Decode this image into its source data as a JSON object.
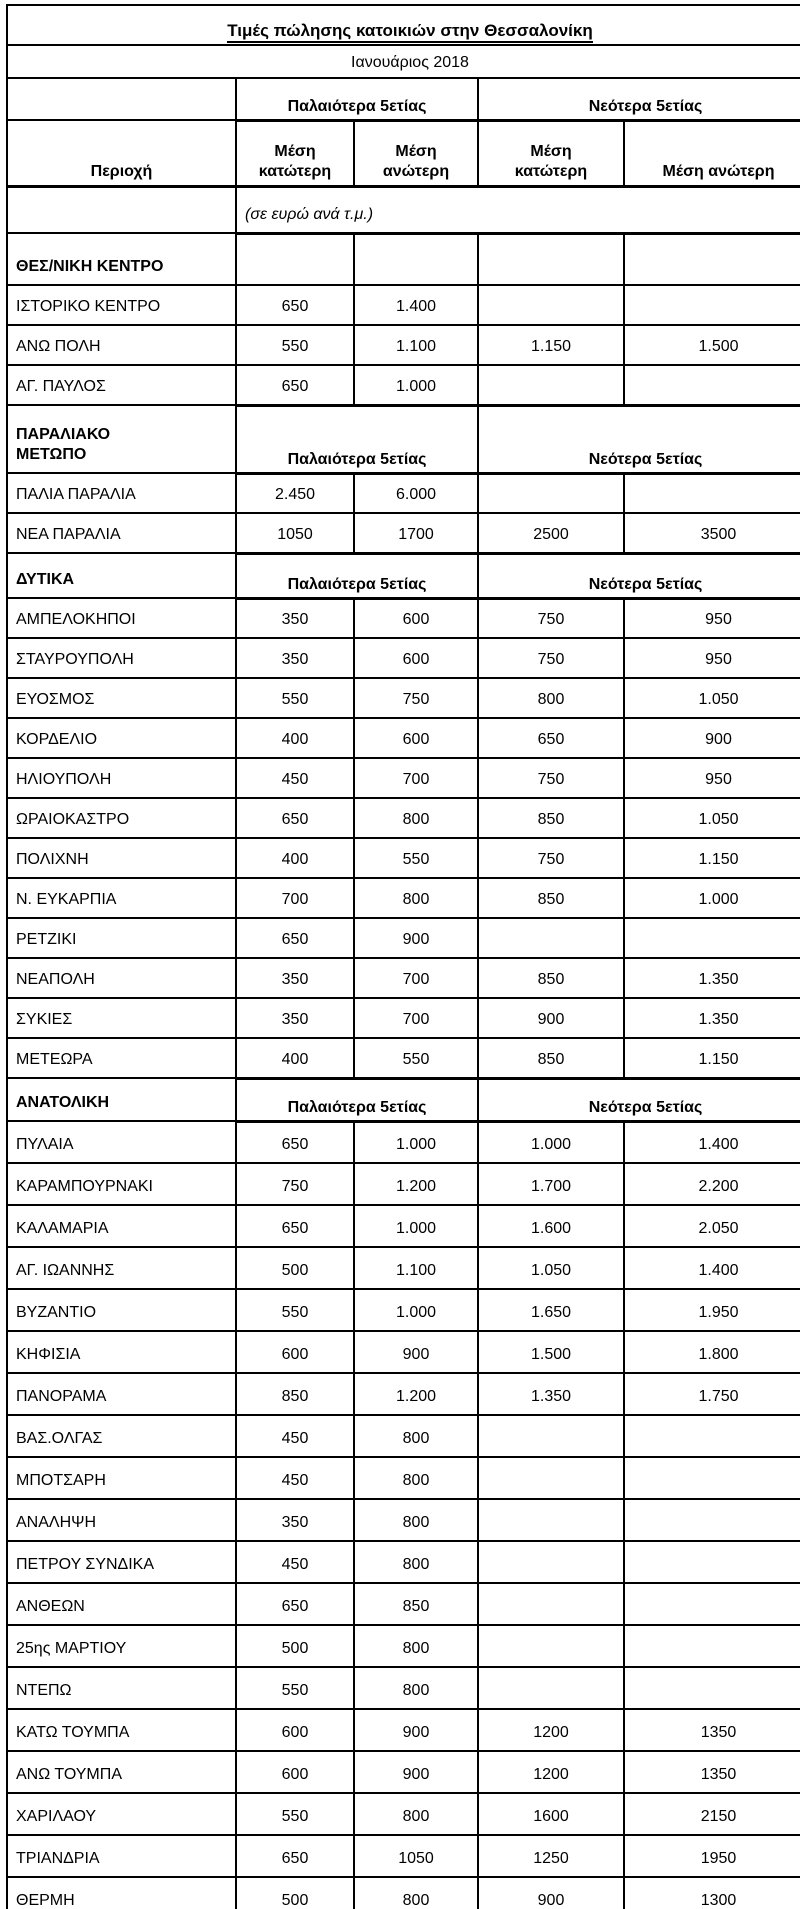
{
  "title": "Τιμές πώλησης κατοικιών στην Θεσσαλονίκη",
  "period": "Ιανουάριος 2018",
  "units_note": "(σε ευρώ ανά τ.μ.)",
  "column_groups": {
    "old": "Παλαιότερα 5ετίας",
    "new": "Νεότερα 5ετίας"
  },
  "columns": {
    "area": "Περιοχή",
    "old_min": "Μέση κατώτερη",
    "old_max": "Μέση ανώτερη",
    "new_min": "Μέση κατώτερη",
    "new_max": "Μέση ανώτερη"
  },
  "colors": {
    "text": "#000000",
    "border": "#000000",
    "background": "#ffffff"
  },
  "sections": [
    {
      "name": "ΘΕΣ/ΝΙΚΗ ΚΕΝΤΡΟ",
      "show_group_labels": false,
      "rows": [
        {
          "area": "ΙΣΤΟΡΙΚΟ ΚΕΝΤΡΟ",
          "old_min": "650",
          "old_max": "1.400",
          "new_min": "",
          "new_max": ""
        },
        {
          "area": "ΑΝΩ ΠΟΛΗ",
          "old_min": "550",
          "old_max": "1.100",
          "new_min": "1.150",
          "new_max": "1.500"
        },
        {
          "area": "ΑΓ. ΠΑΥΛΟΣ",
          "old_min": "650",
          "old_max": "1.000",
          "new_min": "",
          "new_max": ""
        }
      ]
    },
    {
      "name": "ΠΑΡΑΛΙΑΚΟ\nΜΕΤΩΠΟ",
      "show_group_labels": true,
      "rows": [
        {
          "area": "ΠΑΛΙΑ ΠΑΡΑΛΙΑ",
          "old_min": "2.450",
          "old_max": "6.000",
          "new_min": "",
          "new_max": ""
        },
        {
          "area": "ΝΕΑ ΠΑΡΑΛΙΑ",
          "old_min": "1050",
          "old_max": "1700",
          "new_min": "2500",
          "new_max": "3500"
        }
      ]
    },
    {
      "name": "ΔΥΤΙΚΑ",
      "show_group_labels": true,
      "rows": [
        {
          "area": "ΑΜΠΕΛΟΚΗΠΟΙ",
          "old_min": "350",
          "old_max": "600",
          "new_min": "750",
          "new_max": "950"
        },
        {
          "area": "ΣΤΑΥΡΟΥΠΟΛΗ",
          "old_min": "350",
          "old_max": "600",
          "new_min": "750",
          "new_max": "950"
        },
        {
          "area": "ΕΥΟΣΜΟΣ",
          "old_min": "550",
          "old_max": "750",
          "new_min": "800",
          "new_max": "1.050"
        },
        {
          "area": "ΚΟΡΔΕΛΙΟ",
          "old_min": "400",
          "old_max": "600",
          "new_min": "650",
          "new_max": "900"
        },
        {
          "area": "ΗΛΙΟΥΠΟΛΗ",
          "old_min": "450",
          "old_max": "700",
          "new_min": "750",
          "new_max": "950"
        },
        {
          "area": "ΩΡΑΙΟΚΑΣΤΡΟ",
          "old_min": "650",
          "old_max": "800",
          "new_min": "850",
          "new_max": "1.050"
        },
        {
          "area": "ΠΟΛΙΧΝΗ",
          "old_min": "400",
          "old_max": "550",
          "new_min": "750",
          "new_max": "1.150"
        },
        {
          "area": "Ν. ΕΥΚΑΡΠΙΑ",
          "old_min": "700",
          "old_max": "800",
          "new_min": "850",
          "new_max": "1.000"
        },
        {
          "area": "ΡΕΤΖΙΚΙ",
          "old_min": "650",
          "old_max": "900",
          "new_min": "",
          "new_max": ""
        },
        {
          "area": "ΝΕΑΠΟΛΗ",
          "old_min": "350",
          "old_max": "700",
          "new_min": "850",
          "new_max": "1.350"
        },
        {
          "area": "ΣΥΚΙΕΣ",
          "old_min": "350",
          "old_max": "700",
          "new_min": "900",
          "new_max": "1.350"
        },
        {
          "area": "ΜΕΤΕΩΡΑ",
          "old_min": "400",
          "old_max": "550",
          "new_min": "850",
          "new_max": "1.150"
        }
      ]
    },
    {
      "name": "ΑΝΑΤΟΛΙΚΗ",
      "show_group_labels": true,
      "rows": [
        {
          "area": "ΠΥΛΑΙΑ",
          "old_min": "650",
          "old_max": "1.000",
          "new_min": "1.000",
          "new_max": "1.400"
        },
        {
          "area": "ΚΑΡΑΜΠΟΥΡΝΑΚΙ",
          "old_min": "750",
          "old_max": "1.200",
          "new_min": "1.700",
          "new_max": "2.200"
        },
        {
          "area": "ΚΑΛΑΜΑΡΙΑ",
          "old_min": "650",
          "old_max": "1.000",
          "new_min": "1.600",
          "new_max": "2.050"
        },
        {
          "area": "ΑΓ. ΙΩΑΝΝΗΣ",
          "old_min": "500",
          "old_max": "1.100",
          "new_min": "1.050",
          "new_max": "1.400"
        },
        {
          "area": "ΒΥΖΑΝΤΙΟ",
          "old_min": "550",
          "old_max": "1.000",
          "new_min": "1.650",
          "new_max": "1.950"
        },
        {
          "area": "ΚΗΦΙΣΙΑ",
          "old_min": "600",
          "old_max": "900",
          "new_min": "1.500",
          "new_max": "1.800"
        },
        {
          "area": "ΠΑΝΟΡΑΜΑ",
          "old_min": "850",
          "old_max": "1.200",
          "new_min": "1.350",
          "new_max": "1.750"
        },
        {
          "area": "ΒΑΣ.ΟΛΓΑΣ",
          "old_min": "450",
          "old_max": "800",
          "new_min": "",
          "new_max": ""
        },
        {
          "area": "ΜΠΟΤΣΑΡΗ",
          "old_min": "450",
          "old_max": "800",
          "new_min": "",
          "new_max": ""
        },
        {
          "area": "ΑΝΑΛΗΨΗ",
          "old_min": "350",
          "old_max": "800",
          "new_min": "",
          "new_max": ""
        },
        {
          "area": "ΠΕΤΡΟΥ ΣΥΝΔΙΚΑ",
          "old_min": "450",
          "old_max": "800",
          "new_min": "",
          "new_max": ""
        },
        {
          "area": "ΑΝΘΕΩΝ",
          "old_min": "650",
          "old_max": "850",
          "new_min": "",
          "new_max": ""
        },
        {
          "area": "25ης ΜΑΡΤΙΟΥ",
          "old_min": "500",
          "old_max": "800",
          "new_min": "",
          "new_max": ""
        },
        {
          "area": "ΝΤΕΠΩ",
          "old_min": "550",
          "old_max": "800",
          "new_min": "",
          "new_max": ""
        },
        {
          "area": "ΚΑΤΩ ΤΟΥΜΠΑ",
          "old_min": "600",
          "old_max": "900",
          "new_min": "1200",
          "new_max": "1350"
        },
        {
          "area": "ΑΝΩ ΤΟΥΜΠΑ",
          "old_min": "600",
          "old_max": "900",
          "new_min": "1200",
          "new_max": "1350"
        },
        {
          "area": "ΧΑΡΙΛΑΟΥ",
          "old_min": "550",
          "old_max": "800",
          "new_min": "1600",
          "new_max": "2150"
        },
        {
          "area": "ΤΡΙΑΝΔΡΙΑ",
          "old_min": "650",
          "old_max": "1050",
          "new_min": "1250",
          "new_max": "1950"
        },
        {
          "area": "ΘΕΡΜΗ",
          "old_min": "500",
          "old_max": "800",
          "new_min": "900",
          "new_max": "1300"
        }
      ]
    }
  ]
}
